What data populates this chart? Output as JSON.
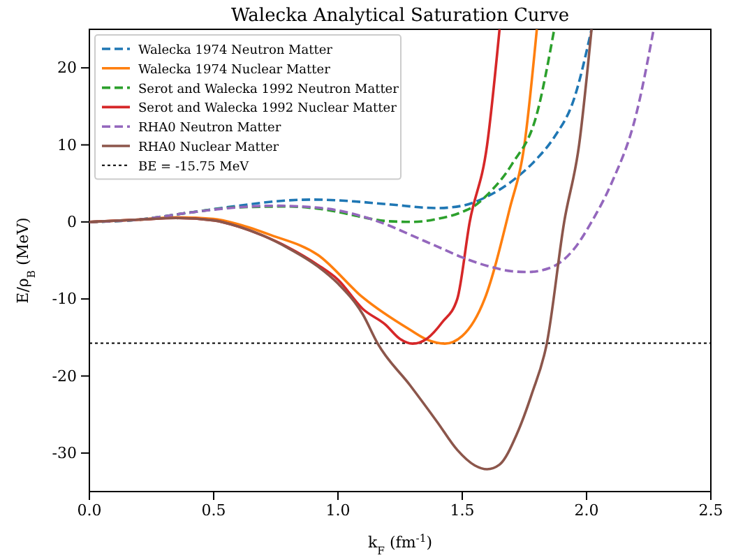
{
  "chart_data": {
    "type": "line",
    "title": "Walecka Analytical Saturation Curve",
    "xlabel": "k$_{F}$ (fm$^{-1}$)",
    "ylabel": "E/ρ$_{B}$ (MeV)",
    "xlim": [
      0,
      2.5
    ],
    "ylim": [
      -35,
      25
    ],
    "xticks": [
      {
        "value": 0,
        "label": "0.0"
      },
      {
        "value": 0.5,
        "label": "0.5"
      },
      {
        "value": 1,
        "label": "1.0"
      },
      {
        "value": 1.5,
        "label": "1.5"
      },
      {
        "value": 2,
        "label": "2.0"
      },
      {
        "value": 2.5,
        "label": "2.5"
      }
    ],
    "yticks": [
      -30,
      -20,
      -10,
      0,
      10,
      20
    ],
    "grid": false,
    "legend": "top left",
    "marker": "none",
    "series": [
      {
        "name": "Walecka 1974 Neutron Matter",
        "color": "#1f77b4",
        "line_style": "dashed",
        "x": [
          0,
          0.2,
          0.4,
          0.6,
          0.8,
          0.9,
          1.0,
          1.2,
          1.4,
          1.5,
          1.6,
          1.7,
          1.8,
          1.87,
          1.95,
          2.02
        ],
        "values": [
          0,
          0.3,
          1.2,
          2.1,
          2.8,
          2.9,
          2.8,
          2.3,
          1.8,
          2.1,
          3.3,
          5.3,
          8.2,
          11,
          16,
          25
        ]
      },
      {
        "name": "Walecka 1974 Nuclear Matter",
        "color": "#ff7f0e",
        "line_style": "solid",
        "x": [
          0,
          0.2,
          0.35,
          0.5,
          0.6,
          0.73,
          0.92,
          1.1,
          1.29,
          1.36,
          1.43,
          1.5,
          1.59,
          1.69,
          1.75,
          1.8
        ],
        "values": [
          0,
          0.3,
          0.6,
          0.4,
          -0.3,
          -1.7,
          -4.3,
          -9.8,
          -14,
          -15.3,
          -15.8,
          -14.8,
          -10,
          1.6,
          10,
          25
        ]
      },
      {
        "name": "Serot and Walecka 1992 Neutron Matter",
        "color": "#2ca02c",
        "line_style": "dashed",
        "x": [
          0,
          0.2,
          0.4,
          0.6,
          0.8,
          0.9,
          1.0,
          1.1,
          1.2,
          1.3,
          1.4,
          1.5,
          1.55,
          1.6,
          1.7,
          1.8,
          1.87
        ],
        "values": [
          0,
          0.3,
          1.2,
          1.9,
          2.0,
          1.8,
          1.3,
          0.6,
          0.1,
          0,
          0.4,
          1.3,
          2.1,
          3.5,
          7.5,
          14,
          25
        ]
      },
      {
        "name": "Serot and Walecka 1992 Nuclear Matter",
        "color": "#d62728",
        "line_style": "solid",
        "x": [
          0,
          0.2,
          0.35,
          0.5,
          0.6,
          0.7,
          0.8,
          0.92,
          1.0,
          1.1,
          1.19,
          1.25,
          1.3,
          1.36,
          1.42,
          1.48,
          1.53,
          1.6,
          1.65
        ],
        "values": [
          0,
          0.3,
          0.5,
          0.2,
          -0.6,
          -1.8,
          -3.3,
          -5.6,
          -7.5,
          -11.3,
          -13.3,
          -15.2,
          -15.8,
          -15.1,
          -13,
          -10,
          0,
          10,
          25
        ]
      },
      {
        "name": "RHA0 Neutron Matter",
        "color": "#9467bd",
        "line_style": "dashed",
        "x": [
          0,
          0.2,
          0.4,
          0.6,
          0.75,
          0.9,
          1.0,
          1.1,
          1.2,
          1.3,
          1.4,
          1.5,
          1.6,
          1.7,
          1.76,
          1.85,
          1.95,
          2.02,
          2.1,
          2.2,
          2.27
        ],
        "values": [
          0,
          0.3,
          1.2,
          1.9,
          2.1,
          1.9,
          1.5,
          0.7,
          -0.4,
          -1.8,
          -3.2,
          -4.6,
          -5.7,
          -6.4,
          -6.5,
          -6,
          -3.5,
          0,
          5,
          14,
          25
        ]
      },
      {
        "name": "RHA0 Nuclear Matter",
        "color": "#8c564b",
        "line_style": "solid",
        "x": [
          0,
          0.2,
          0.35,
          0.5,
          0.6,
          0.7,
          0.8,
          0.92,
          1.0,
          1.1,
          1.16,
          1.29,
          1.4,
          1.48,
          1.55,
          1.6,
          1.65,
          1.72,
          1.78,
          1.84,
          1.91,
          1.97,
          2.02
        ],
        "values": [
          0,
          0.3,
          0.5,
          0.2,
          -0.6,
          -1.8,
          -3.4,
          -5.8,
          -8.0,
          -12,
          -15.8,
          -21.2,
          -26,
          -29.6,
          -31.6,
          -32.1,
          -31.5,
          -27.5,
          -22.3,
          -15.8,
          0,
          10,
          25
        ]
      }
    ],
    "ref_lines": [
      {
        "axis": "y",
        "value": -15.75,
        "label": "BE = -15.75 MeV",
        "color": "#000000",
        "line_style": "dotted"
      }
    ]
  }
}
